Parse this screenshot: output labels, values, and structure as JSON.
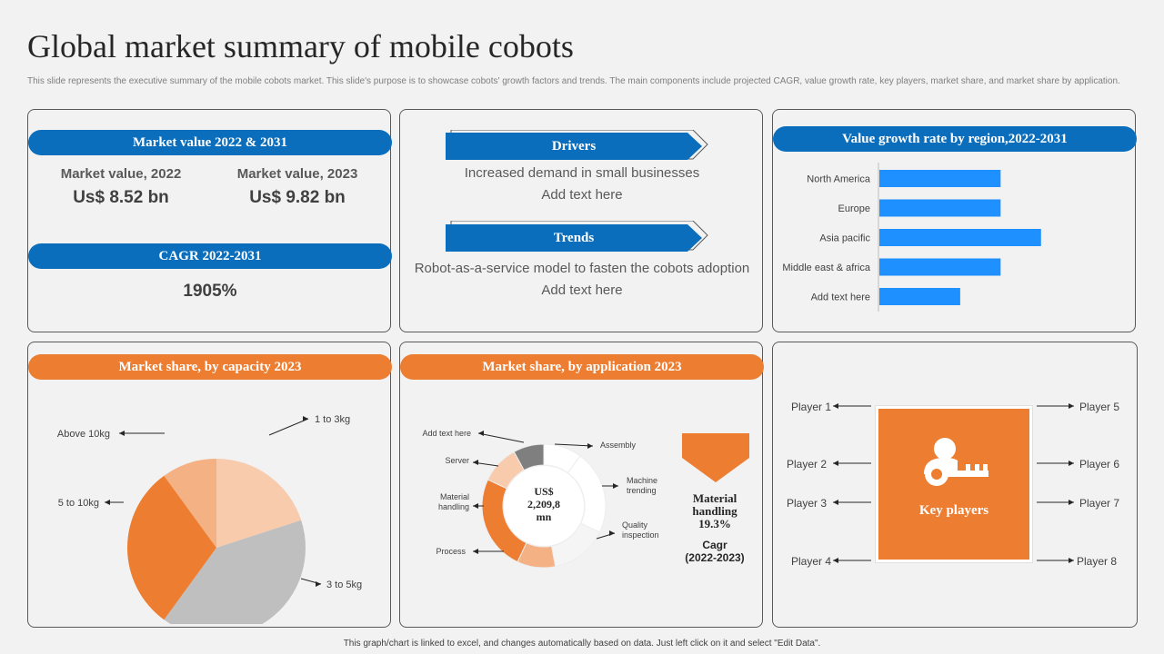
{
  "header": {
    "title": "Global market summary of mobile cobots",
    "subtitle": "This slide represents the executive summary of the mobile cobots market. This slide's purpose is to showcase cobots' growth factors and trends. The main components include projected CAGR, value growth rate, key players, market share, and market share by application."
  },
  "market_value": {
    "heading": "Market value 2022 & 2031",
    "left_label": "Market value, 2022",
    "left_value": "Us$ 8.52 bn",
    "right_label": "Market value, 2023",
    "right_value": "Us$ 9.82 bn",
    "cagr_heading": "CAGR 2022-2031",
    "cagr_value": "1905%"
  },
  "drivers": {
    "heading": "Drivers",
    "line1": "Increased demand in small businesses",
    "line2": "Add text here",
    "trends_heading": "Trends",
    "trends_line1": "Robot-as-a-service model to fasten the cobots adoption",
    "trends_line2": "Add text here"
  },
  "key_players": {
    "label": "Key players",
    "left": [
      "Player 1",
      "Player 2",
      "Player 3",
      "Player 4"
    ],
    "right": [
      "Player 5",
      "Player 6",
      "Player 7",
      "Player 8"
    ]
  },
  "application_extra": {
    "center_label_1": "US$",
    "center_label_2": "2,209,8",
    "center_label_3": "mn",
    "mh_line1": "Material",
    "mh_line2": "handling",
    "mh_line3": "19.3%",
    "cagr_line1": "Cagr",
    "cagr_line2": "(2022-2023)"
  },
  "footer": "This graph/chart is linked to excel, and changes automatically based on data. Just left click on it and select \"Edit Data\".",
  "colors": {
    "blue": "#0a6ebd",
    "orange": "#ed7d31",
    "bar_blue": "#1e90ff"
  },
  "chart_data": [
    {
      "type": "bar",
      "orientation": "horizontal",
      "title": "Value growth rate by region,2022-2031",
      "categories": [
        "North America",
        "Europe",
        "Asia pacific",
        "Middle east & africa",
        "Add text here"
      ],
      "values": [
        3,
        3,
        4,
        3,
        2
      ],
      "xlim": [
        0,
        4.5
      ],
      "grid": false
    },
    {
      "type": "pie",
      "title": "Market share, by capacity 2023",
      "labels": [
        "1 to 3kg",
        "3 to 5kg",
        "5 to 10kg",
        "Above 10kg"
      ],
      "values": [
        20,
        40,
        30,
        10
      ],
      "colors": [
        "#f8cbad",
        "#bfbfbf",
        "#ed7d31",
        "#f4b183"
      ]
    },
    {
      "type": "pie",
      "subtype": "donut",
      "title": "Market share, by application 2023",
      "labels": [
        "Assembly",
        "Machine trending",
        "Quality inspection",
        "Process",
        "Material handling",
        "Server",
        "Add text here"
      ],
      "values": [
        10,
        22,
        15,
        10,
        25,
        10,
        8
      ],
      "colors": [
        "#ffffff",
        "#ffffff",
        "#f5f5f5",
        "#f4b183",
        "#ed7d31",
        "#f8cbad",
        "#7f7f7f"
      ]
    }
  ]
}
